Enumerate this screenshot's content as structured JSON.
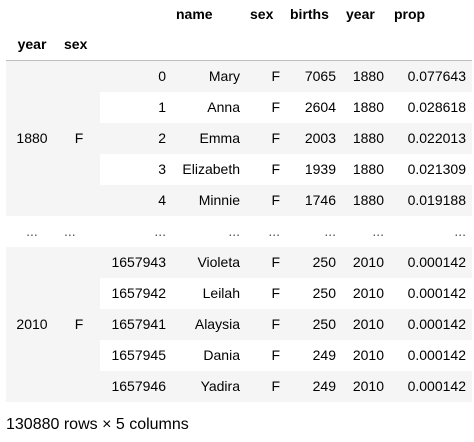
{
  "table": {
    "columns": [
      "name",
      "sex",
      "births",
      "year",
      "prop"
    ],
    "index_names": [
      "year",
      "sex"
    ],
    "groups": [
      {
        "year": "1880",
        "sex": "F",
        "rows": [
          {
            "idx": "0",
            "name": "Mary",
            "sex": "F",
            "births": "7065",
            "year": "1880",
            "prop": "0.077643"
          },
          {
            "idx": "1",
            "name": "Anna",
            "sex": "F",
            "births": "2604",
            "year": "1880",
            "prop": "0.028618"
          },
          {
            "idx": "2",
            "name": "Emma",
            "sex": "F",
            "births": "2003",
            "year": "1880",
            "prop": "0.022013"
          },
          {
            "idx": "3",
            "name": "Elizabeth",
            "sex": "F",
            "births": "1939",
            "year": "1880",
            "prop": "0.021309"
          },
          {
            "idx": "4",
            "name": "Minnie",
            "sex": "F",
            "births": "1746",
            "year": "1880",
            "prop": "0.019188"
          }
        ]
      },
      {
        "year": "2010",
        "sex": "F",
        "rows": [
          {
            "idx": "1657943",
            "name": "Violeta",
            "sex": "F",
            "births": "250",
            "year": "2010",
            "prop": "0.000142"
          },
          {
            "idx": "1657942",
            "name": "Leilah",
            "sex": "F",
            "births": "250",
            "year": "2010",
            "prop": "0.000142"
          },
          {
            "idx": "1657941",
            "name": "Alaysia",
            "sex": "F",
            "births": "250",
            "year": "2010",
            "prop": "0.000142"
          },
          {
            "idx": "1657945",
            "name": "Dania",
            "sex": "F",
            "births": "249",
            "year": "2010",
            "prop": "0.000142"
          },
          {
            "idx": "1657946",
            "name": "Yadira",
            "sex": "F",
            "births": "249",
            "year": "2010",
            "prop": "0.000142"
          }
        ]
      }
    ],
    "ellipsis": "...",
    "ellipsis_short": "..."
  },
  "footer": "130880 rows × 5 columns"
}
